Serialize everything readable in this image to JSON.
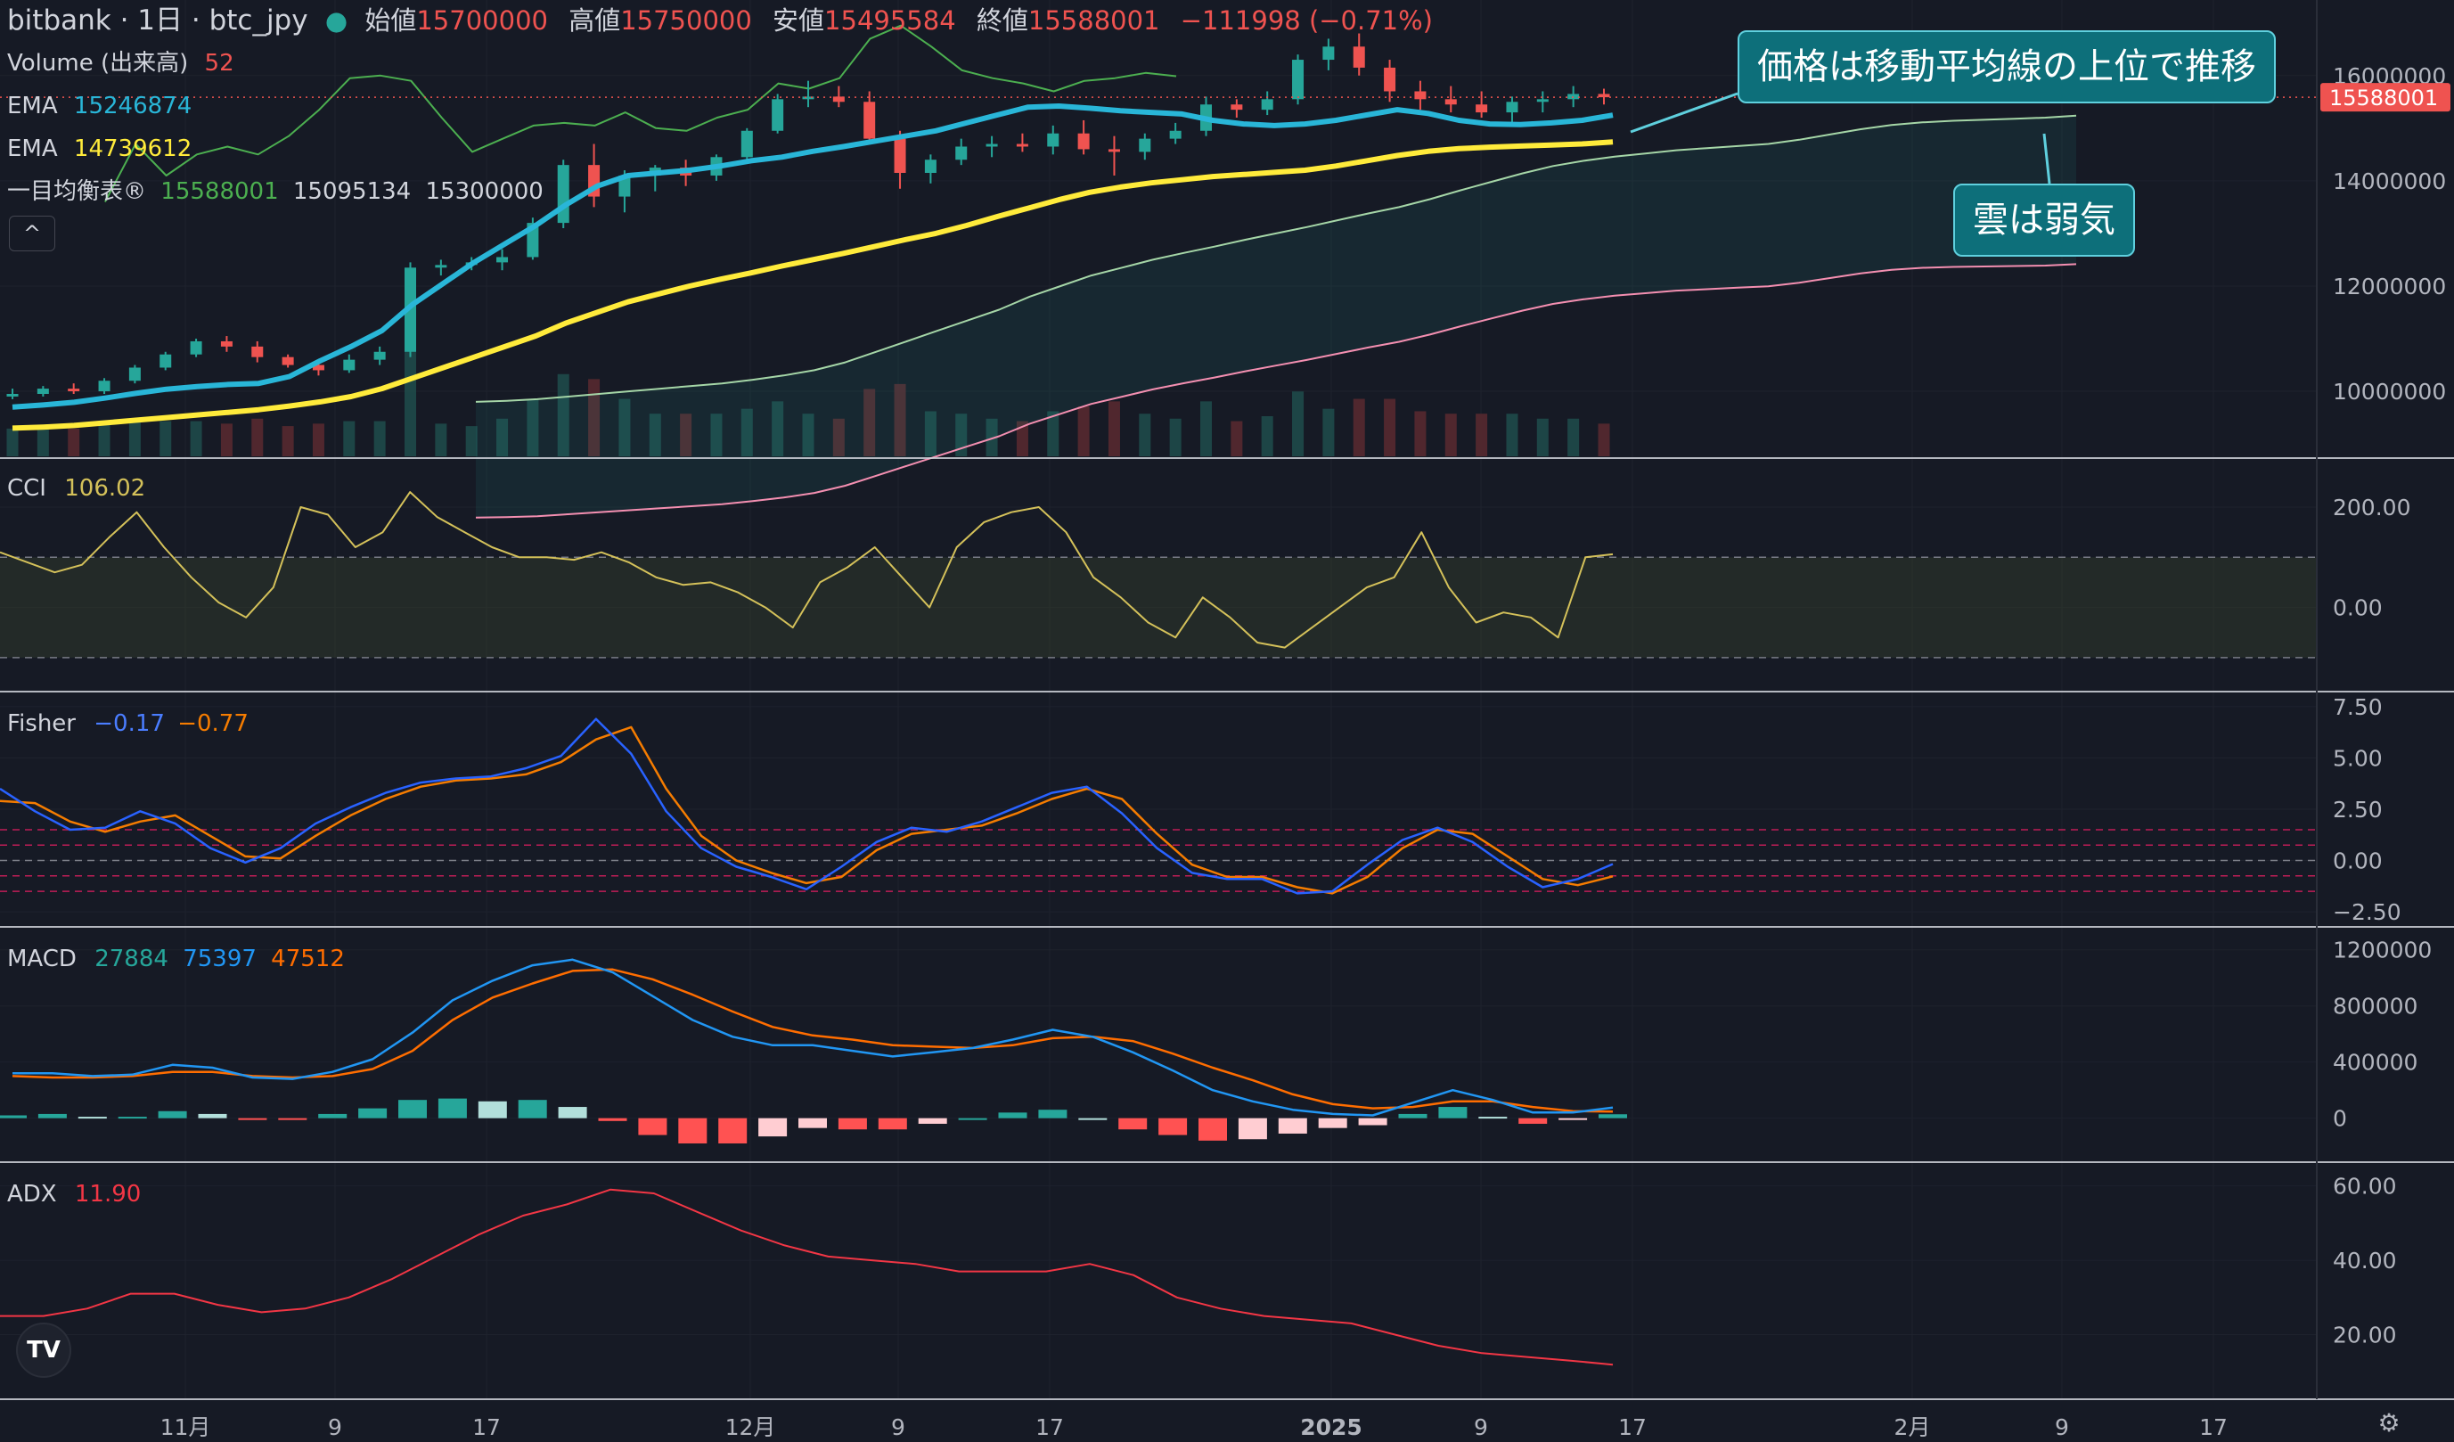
{
  "header": {
    "symbol": "bitbank · 1日 · btc_jpy",
    "open_label": "始値",
    "open": "15700000",
    "high_label": "高値",
    "high": "15750000",
    "low_label": "安値",
    "low": "15495584",
    "close_label": "終値",
    "close": "15588001",
    "change": "−111998 (−0.71%)"
  },
  "legend": {
    "volume_label": "Volume (出来高)",
    "volume_value": "52",
    "ema1_label": "EMA",
    "ema1_value": "15246874",
    "ema2_label": "EMA",
    "ema2_value": "14739612",
    "ichimoku_label": "一目均衡表®",
    "ichimoku_v1": "15588001",
    "ichimoku_v2": "15095134",
    "ichimoku_v3": "15300000",
    "collapse_icon": "^"
  },
  "annotations": {
    "callout_1": "価格は移動平均線の上位で推移",
    "callout_2": "雲は弱気"
  },
  "price_badge": "15588001",
  "colors": {
    "bg": "#161a25",
    "up": "#26a69a",
    "down": "#ef5350",
    "ema_fast": "#29b6d8",
    "ema_slow": "#ffeb3b",
    "cci": "#d4c15a",
    "fisher_a": "#2962ff",
    "fisher_b": "#f57c00",
    "macd": "#2196f3",
    "signal": "#ff6d00",
    "adx": "#f23645"
  },
  "cci": {
    "label": "CCI",
    "value": "106.02"
  },
  "fisher": {
    "label": "Fisher",
    "v1": "−0.17",
    "v2": "−0.77"
  },
  "macd": {
    "label": "MACD",
    "hist": "27884",
    "macd": "75397",
    "signal": "47512"
  },
  "adx": {
    "label": "ADX",
    "value": "11.90"
  },
  "icons": {
    "logo": "tradingview-logo-icon",
    "settings": "gear-icon"
  },
  "chart_data": [
    {
      "type": "candlestick",
      "panel": "price",
      "x_axis": {
        "ticks": [
          "11月",
          "9",
          "17",
          "12月",
          "9",
          "17",
          "2025",
          "9",
          "17",
          "2月",
          "9",
          "17"
        ]
      },
      "y_axis": {
        "ticks": [
          "16000000",
          "14000000",
          "12000000",
          "10000000"
        ],
        "range": [
          8900000,
          17300000
        ]
      },
      "series": [
        {
          "name": "EMA",
          "values": [
            9700000,
            9740000,
            9790000,
            9870000,
            9960000,
            10040000,
            10090000,
            10130000,
            10150000,
            10280000,
            10580000,
            10850000,
            11150000,
            11650000,
            12050000,
            12450000,
            12800000,
            13150000,
            13550000,
            13900000,
            14100000,
            14150000,
            14200000,
            14280000,
            14380000,
            14450000,
            14560000,
            14650000,
            14750000,
            14850000,
            14950000,
            15100000,
            15250000,
            15400000,
            15420000,
            15380000,
            15330000,
            15300000,
            15270000,
            15150000,
            15080000,
            15050000,
            15080000,
            15150000,
            15250000,
            15350000,
            15280000,
            15150000,
            15080000,
            15070000,
            15100000,
            15150000,
            15246874
          ]
        },
        {
          "name": "EMA",
          "values": [
            9300000,
            9320000,
            9350000,
            9400000,
            9450000,
            9500000,
            9550000,
            9600000,
            9650000,
            9720000,
            9800000,
            9900000,
            10050000,
            10250000,
            10450000,
            10650000,
            10850000,
            11050000,
            11300000,
            11500000,
            11700000,
            11850000,
            12000000,
            12130000,
            12250000,
            12380000,
            12500000,
            12620000,
            12750000,
            12880000,
            13000000,
            13150000,
            13320000,
            13480000,
            13640000,
            13780000,
            13880000,
            13960000,
            14020000,
            14080000,
            14120000,
            14160000,
            14200000,
            14280000,
            14380000,
            14480000,
            14560000,
            14610000,
            14640000,
            14660000,
            14680000,
            14700000,
            14739612
          ]
        }
      ],
      "candles": [
        [
          9900000,
          10050000,
          9850000,
          9950000
        ],
        [
          9950000,
          10100000,
          9900000,
          10050000
        ],
        [
          10050000,
          10150000,
          9950000,
          10000000
        ],
        [
          10000000,
          10250000,
          9950000,
          10200000
        ],
        [
          10200000,
          10500000,
          10150000,
          10450000
        ],
        [
          10450000,
          10750000,
          10400000,
          10700000
        ],
        [
          10700000,
          11000000,
          10650000,
          10950000
        ],
        [
          10950000,
          11050000,
          10750000,
          10850000
        ],
        [
          10850000,
          10950000,
          10550000,
          10650000
        ],
        [
          10650000,
          10700000,
          10450000,
          10500000
        ],
        [
          10500000,
          10600000,
          10300000,
          10400000
        ],
        [
          10400000,
          10700000,
          10350000,
          10600000
        ],
        [
          10600000,
          10850000,
          10500000,
          10750000
        ],
        [
          10750000,
          12450000,
          10650000,
          12350000
        ],
        [
          12350000,
          12500000,
          12200000,
          12400000
        ],
        [
          12400000,
          12550000,
          12300000,
          12450000
        ],
        [
          12450000,
          12700000,
          12300000,
          12550000
        ],
        [
          12550000,
          13300000,
          12500000,
          13200000
        ],
        [
          13200000,
          14400000,
          13100000,
          14300000
        ],
        [
          14300000,
          14700000,
          13500000,
          13700000
        ],
        [
          13700000,
          14200000,
          13400000,
          14100000
        ],
        [
          14100000,
          14300000,
          13800000,
          14250000
        ],
        [
          14250000,
          14400000,
          13900000,
          14100000
        ],
        [
          14100000,
          14500000,
          14000000,
          14450000
        ],
        [
          14450000,
          15000000,
          14400000,
          14950000
        ],
        [
          14950000,
          15650000,
          14900000,
          15550000
        ],
        [
          15550000,
          15900000,
          15400000,
          15600000
        ],
        [
          15600000,
          15800000,
          15400000,
          15500000
        ],
        [
          15500000,
          15700000,
          14700000,
          14800000
        ],
        [
          14800000,
          14950000,
          13850000,
          14150000
        ],
        [
          14150000,
          14500000,
          13950000,
          14400000
        ],
        [
          14400000,
          14800000,
          14300000,
          14650000
        ],
        [
          14650000,
          14850000,
          14450000,
          14700000
        ],
        [
          14700000,
          14900000,
          14550000,
          14650000
        ],
        [
          14650000,
          15050000,
          14500000,
          14900000
        ],
        [
          14900000,
          15150000,
          14500000,
          14600000
        ],
        [
          14600000,
          14850000,
          14100000,
          14550000
        ],
        [
          14550000,
          14900000,
          14400000,
          14800000
        ],
        [
          14800000,
          15100000,
          14700000,
          14950000
        ],
        [
          14950000,
          15600000,
          14850000,
          15450000
        ],
        [
          15450000,
          15550000,
          15200000,
          15350000
        ],
        [
          15350000,
          15700000,
          15250000,
          15550000
        ],
        [
          15550000,
          16400000,
          15450000,
          16300000
        ],
        [
          16300000,
          16700000,
          16100000,
          16550000
        ],
        [
          16550000,
          16800000,
          16000000,
          16150000
        ],
        [
          16150000,
          16300000,
          15500000,
          15700000
        ],
        [
          15700000,
          15900000,
          15350000,
          15550000
        ],
        [
          15550000,
          15800000,
          15300000,
          15450000
        ],
        [
          15450000,
          15700000,
          15200000,
          15300000
        ],
        [
          15300000,
          15600000,
          15100000,
          15500000
        ],
        [
          15500000,
          15700000,
          15300000,
          15550000
        ],
        [
          15550000,
          15800000,
          15400000,
          15650000
        ],
        [
          15650000,
          15750000,
          15450000,
          15588001
        ]
      ]
    },
    {
      "type": "line",
      "panel": "CCI",
      "y_axis": {
        "ticks": [
          "200.00",
          "0.00"
        ],
        "range": [
          -150,
          280
        ]
      },
      "series": [
        {
          "name": "CCI",
          "values": [
            110,
            90,
            70,
            85,
            140,
            190,
            120,
            60,
            10,
            -20,
            40,
            200,
            185,
            120,
            150,
            230,
            180,
            150,
            120,
            100,
            100,
            95,
            110,
            90,
            60,
            45,
            50,
            30,
            0,
            -40,
            50,
            80,
            120,
            60,
            0,
            120,
            170,
            190,
            200,
            150,
            60,
            20,
            -30,
            -60,
            20,
            -20,
            -70,
            -80,
            -40,
            0,
            40,
            60,
            150,
            40,
            -30,
            -10,
            -20,
            -60,
            100,
            106
          ]
        }
      ]
    },
    {
      "type": "line",
      "panel": "Fisher",
      "y_axis": {
        "ticks": [
          "7.50",
          "5.00",
          "2.50",
          "0.00",
          "−2.50"
        ],
        "range": [
          -2.8,
          7.8
        ]
      },
      "series": [
        {
          "name": "Fisher",
          "values": [
            3.5,
            2.4,
            1.5,
            1.6,
            2.4,
            1.8,
            0.6,
            -0.1,
            0.6,
            1.8,
            2.6,
            3.3,
            3.8,
            4.0,
            4.1,
            4.5,
            5.1,
            6.9,
            5.2,
            2.4,
            0.6,
            -0.3,
            -0.8,
            -1.4,
            -0.3,
            0.9,
            1.6,
            1.4,
            1.9,
            2.6,
            3.3,
            3.6,
            2.3,
            0.6,
            -0.6,
            -0.9,
            -0.9,
            -1.6,
            -1.5,
            -0.2,
            1.0,
            1.6,
            0.9,
            -0.3,
            -1.3,
            -0.9,
            -0.17
          ]
        },
        {
          "name": "Fisher",
          "values": [
            2.9,
            2.8,
            1.9,
            1.4,
            1.9,
            2.2,
            1.2,
            0.2,
            0.1,
            1.2,
            2.2,
            3.0,
            3.6,
            3.9,
            4.0,
            4.2,
            4.8,
            5.9,
            6.5,
            3.5,
            1.2,
            0.0,
            -0.6,
            -1.1,
            -0.8,
            0.5,
            1.3,
            1.5,
            1.7,
            2.3,
            3.0,
            3.5,
            3.0,
            1.3,
            -0.2,
            -0.8,
            -0.8,
            -1.3,
            -1.6,
            -0.8,
            0.6,
            1.5,
            1.3,
            0.2,
            -0.9,
            -1.2,
            -0.77
          ]
        }
      ]
    },
    {
      "type": "line+bar",
      "panel": "MACD",
      "y_axis": {
        "ticks": [
          "1200000",
          "800000",
          "400000",
          "0"
        ],
        "range": [
          -250000,
          1300000
        ]
      },
      "series": [
        {
          "name": "MACD",
          "values": [
            320000,
            320000,
            300000,
            310000,
            380000,
            360000,
            290000,
            280000,
            330000,
            420000,
            610000,
            840000,
            980000,
            1090000,
            1130000,
            1040000,
            870000,
            700000,
            580000,
            520000,
            520000,
            480000,
            440000,
            470000,
            500000,
            560000,
            630000,
            580000,
            470000,
            340000,
            200000,
            120000,
            60000,
            30000,
            20000,
            110000,
            200000,
            130000,
            40000,
            40000,
            75397
          ]
        },
        {
          "name": "signal",
          "values": [
            300000,
            290000,
            290000,
            300000,
            330000,
            330000,
            300000,
            290000,
            300000,
            350000,
            480000,
            700000,
            860000,
            960000,
            1050000,
            1060000,
            990000,
            880000,
            760000,
            650000,
            590000,
            560000,
            520000,
            510000,
            500000,
            520000,
            570000,
            580000,
            550000,
            460000,
            360000,
            270000,
            170000,
            100000,
            70000,
            80000,
            120000,
            120000,
            80000,
            50000,
            47512
          ]
        },
        {
          "name": "histogram",
          "values": [
            20000,
            30000,
            10000,
            10000,
            50000,
            30000,
            -10000,
            -10000,
            30000,
            70000,
            130000,
            140000,
            120000,
            130000,
            80000,
            -20000,
            -120000,
            -180000,
            -180000,
            -130000,
            -70000,
            -80000,
            -80000,
            -40000,
            0,
            40000,
            60000,
            0,
            -80000,
            -120000,
            -160000,
            -150000,
            -110000,
            -70000,
            -50000,
            30000,
            80000,
            10000,
            -40000,
            -10000,
            27884
          ]
        }
      ]
    },
    {
      "type": "line",
      "panel": "ADX",
      "y_axis": {
        "ticks": [
          "60.00",
          "40.00",
          "20.00"
        ],
        "range": [
          5,
          64
        ]
      },
      "series": [
        {
          "name": "ADX",
          "values": [
            25,
            25,
            27,
            31,
            31,
            28,
            26,
            27,
            30,
            35,
            41,
            47,
            52,
            55,
            59,
            58,
            53,
            48,
            44,
            41,
            40,
            39,
            37,
            37,
            37,
            39,
            36,
            30,
            27,
            25,
            24,
            23,
            20,
            17,
            15,
            14,
            13,
            11.9
          ]
        }
      ]
    }
  ]
}
